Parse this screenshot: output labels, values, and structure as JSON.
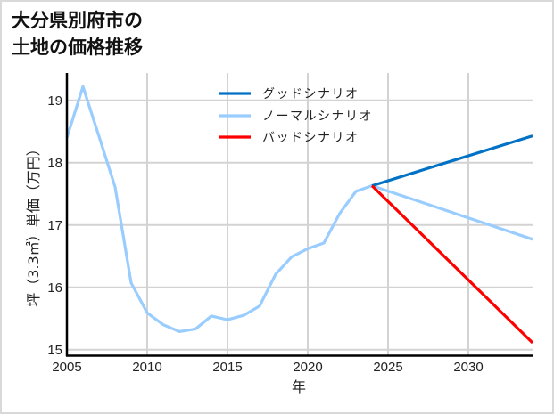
{
  "title": {
    "line1": "大分県別府市の",
    "line2": "土地の価格推移"
  },
  "chart_data": {
    "type": "line",
    "title": "大分県別府市の土地の価格推移",
    "xlabel": "年",
    "ylabel": "坪（3.3㎡）単価（万円）",
    "xlim": [
      2005,
      2034
    ],
    "ylim": [
      14.9,
      19.4
    ],
    "x_ticks": [
      2005,
      2010,
      2015,
      2020,
      2025,
      2030
    ],
    "y_ticks": [
      15,
      16,
      17,
      18,
      19
    ],
    "grid": true,
    "legend_position": "upper center",
    "series": [
      {
        "name": "グッドシナリオ",
        "color": "#0072c6",
        "x": [
          2024,
          2034
        ],
        "values": [
          17.63,
          18.43
        ]
      },
      {
        "name": "ノーマルシナリオ",
        "color": "#99ccff",
        "x": [
          2005,
          2006,
          2007,
          2008,
          2009,
          2010,
          2011,
          2012,
          2013,
          2014,
          2015,
          2016,
          2017,
          2018,
          2019,
          2020,
          2021,
          2022,
          2023,
          2024,
          2034
        ],
        "values": [
          18.4,
          19.22,
          18.42,
          17.61,
          16.07,
          15.59,
          15.4,
          15.29,
          15.33,
          15.54,
          15.48,
          15.55,
          15.7,
          16.21,
          16.49,
          16.62,
          16.71,
          17.19,
          17.54,
          17.63,
          16.77
        ]
      },
      {
        "name": "バッドシナリオ",
        "color": "#ff0000",
        "x": [
          2024,
          2034
        ],
        "values": [
          17.63,
          15.11
        ]
      }
    ]
  },
  "legend": {
    "items": [
      {
        "label": "グッドシナリオ",
        "color": "#0072c6"
      },
      {
        "label": "ノーマルシナリオ",
        "color": "#99ccff"
      },
      {
        "label": "バッドシナリオ",
        "color": "#ff0000"
      }
    ]
  },
  "axes": {
    "x_label": "年",
    "y_label": "坪（3.3㎡）単価（万円）",
    "x_ticks": [
      "2005",
      "2010",
      "2015",
      "2020",
      "2025",
      "2030"
    ],
    "y_ticks": [
      "15",
      "16",
      "17",
      "18",
      "19"
    ]
  }
}
